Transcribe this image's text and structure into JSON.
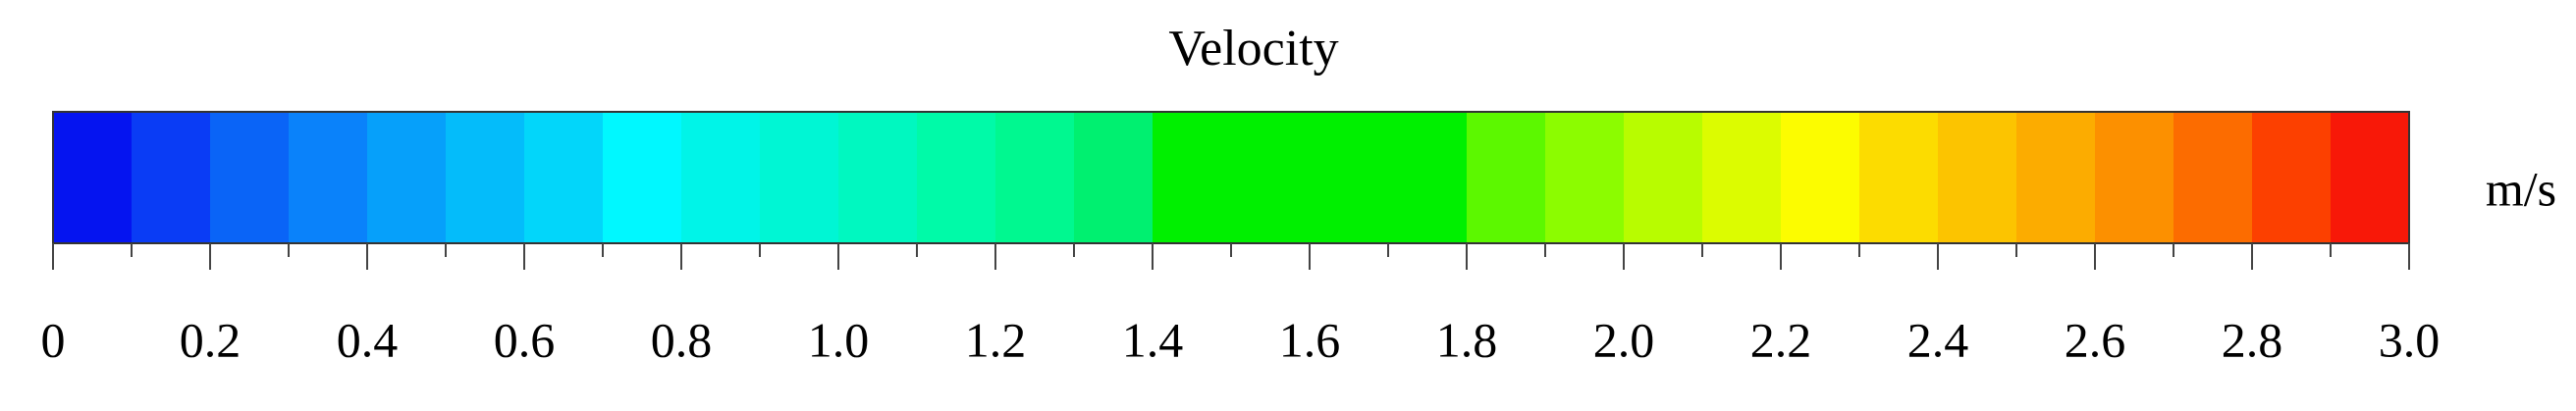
{
  "chart_data": {
    "type": "colorbar",
    "title": "Velocity",
    "unit_label": "m/s",
    "bins": [
      0,
      0.1,
      0.2,
      0.3,
      0.4,
      0.5,
      0.6,
      0.7,
      0.8,
      0.9,
      1.0,
      1.1,
      1.2,
      1.3,
      1.4,
      1.8,
      1.9,
      2.0,
      2.1,
      2.2,
      2.3,
      2.4,
      2.5,
      2.6,
      2.7,
      2.8,
      2.9,
      3.0
    ],
    "colors": [
      "#0514f0",
      "#0a3cf5",
      "#0a64f7",
      "#0a82fa",
      "#06a0fa",
      "#04bcfa",
      "#02d6fa",
      "#00f8ff",
      "#00f4e8",
      "#00f6d4",
      "#00f8c0",
      "#00faa8",
      "#00f890",
      "#00f070",
      "#00f000",
      "#5cf800",
      "#8cfc00",
      "#b8fc00",
      "#dcfc00",
      "#fcfc00",
      "#fcdc00",
      "#fcc400",
      "#fcac00",
      "#fc9000",
      "#fc6c00",
      "#fc4000",
      "#f81808"
    ],
    "xlim": [
      0,
      3
    ],
    "xticks": [
      0,
      0.2,
      0.4,
      0.6,
      0.8,
      {
        "value": 1,
        "label": "1.0"
      },
      1.2,
      1.4,
      1.6,
      1.8,
      {
        "value": 2,
        "label": "2.0"
      },
      2.2,
      2.4,
      2.6,
      2.8,
      {
        "value": 3,
        "label": "3.0"
      }
    ],
    "minor_ticks": [
      0.1,
      0.3,
      0.5,
      0.7,
      0.9,
      1.1,
      1.3,
      1.5,
      1.7,
      1.9,
      2.1,
      2.3,
      2.5,
      2.7,
      2.9
    ]
  }
}
